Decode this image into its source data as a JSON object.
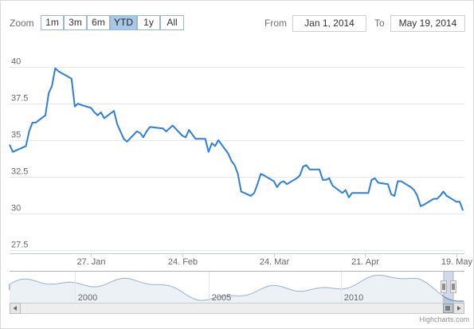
{
  "toolbar": {
    "zoom_label": "Zoom",
    "buttons": [
      "1m",
      "3m",
      "6m",
      "YTD",
      "1y",
      "All"
    ],
    "active_button": "YTD",
    "from_label": "From",
    "from_value": "Jan 1, 2014",
    "to_label": "To",
    "to_value": "May 19, 2014"
  },
  "chart_data": {
    "type": "line",
    "title": "",
    "xlabel": "",
    "ylabel": "",
    "x_start": "2014-01-02",
    "x_end": "2014-05-19",
    "ylim": [
      27.5,
      40
    ],
    "y_ticks": [
      "27.5",
      "30",
      "32.5",
      "35",
      "37.5",
      "40"
    ],
    "x_ticks": [
      "27. Jan",
      "24. Feb",
      "24. Mar",
      "21. Apr",
      "19. May"
    ],
    "grid": true,
    "series": [
      {
        "color": "#2f7ed8",
        "points": [
          [
            "2014-01-02",
            34.7
          ],
          [
            "2014-01-03",
            34.2
          ],
          [
            "2014-01-06",
            34.5
          ],
          [
            "2014-01-07",
            34.6
          ],
          [
            "2014-01-08",
            35.6
          ],
          [
            "2014-01-09",
            36.2
          ],
          [
            "2014-01-10",
            36.2
          ],
          [
            "2014-01-13",
            36.7
          ],
          [
            "2014-01-14",
            38.2
          ],
          [
            "2014-01-15",
            38.7
          ],
          [
            "2014-01-16",
            39.9
          ],
          [
            "2014-01-17",
            39.7
          ],
          [
            "2014-01-21",
            39.2
          ],
          [
            "2014-01-22",
            37.3
          ],
          [
            "2014-01-23",
            37.5
          ],
          [
            "2014-01-24",
            37.4
          ],
          [
            "2014-01-27",
            37.2
          ],
          [
            "2014-01-28",
            36.9
          ],
          [
            "2014-01-29",
            36.7
          ],
          [
            "2014-01-30",
            36.9
          ],
          [
            "2014-01-31",
            36.5
          ],
          [
            "2014-02-03",
            37.0
          ],
          [
            "2014-02-04",
            36.1
          ],
          [
            "2014-02-05",
            35.6
          ],
          [
            "2014-02-06",
            35.1
          ],
          [
            "2014-02-07",
            34.9
          ],
          [
            "2014-02-10",
            35.6
          ],
          [
            "2014-02-11",
            35.5
          ],
          [
            "2014-02-12",
            35.2
          ],
          [
            "2014-02-13",
            35.6
          ],
          [
            "2014-02-14",
            35.9
          ],
          [
            "2014-02-18",
            35.8
          ],
          [
            "2014-02-19",
            35.6
          ],
          [
            "2014-02-20",
            35.8
          ],
          [
            "2014-02-21",
            36.0
          ],
          [
            "2014-02-24",
            35.3
          ],
          [
            "2014-02-25",
            35.2
          ],
          [
            "2014-02-26",
            35.7
          ],
          [
            "2014-02-27",
            35.4
          ],
          [
            "2014-02-28",
            35.1
          ],
          [
            "2014-03-03",
            35.1
          ],
          [
            "2014-03-04",
            34.2
          ],
          [
            "2014-03-05",
            34.8
          ],
          [
            "2014-03-06",
            34.6
          ],
          [
            "2014-03-07",
            35.0
          ],
          [
            "2014-03-10",
            34.1
          ],
          [
            "2014-03-11",
            33.6
          ],
          [
            "2014-03-12",
            33.3
          ],
          [
            "2014-03-13",
            32.7
          ],
          [
            "2014-03-14",
            31.5
          ],
          [
            "2014-03-17",
            31.2
          ],
          [
            "2014-03-18",
            31.4
          ],
          [
            "2014-03-19",
            32.0
          ],
          [
            "2014-03-20",
            32.7
          ],
          [
            "2014-03-21",
            32.6
          ],
          [
            "2014-03-24",
            32.2
          ],
          [
            "2014-03-25",
            31.8
          ],
          [
            "2014-03-26",
            32.1
          ],
          [
            "2014-03-27",
            32.2
          ],
          [
            "2014-03-28",
            32.0
          ],
          [
            "2014-03-31",
            32.4
          ],
          [
            "2014-04-01",
            32.6
          ],
          [
            "2014-04-02",
            33.2
          ],
          [
            "2014-04-03",
            33.3
          ],
          [
            "2014-04-04",
            33.0
          ],
          [
            "2014-04-07",
            33.0
          ],
          [
            "2014-04-08",
            32.3
          ],
          [
            "2014-04-09",
            32.3
          ],
          [
            "2014-04-10",
            32.4
          ],
          [
            "2014-04-11",
            31.9
          ],
          [
            "2014-04-14",
            31.4
          ],
          [
            "2014-04-15",
            31.6
          ],
          [
            "2014-04-16",
            31.1
          ],
          [
            "2014-04-17",
            31.4
          ],
          [
            "2014-04-21",
            31.4
          ],
          [
            "2014-04-22",
            31.4
          ],
          [
            "2014-04-23",
            32.3
          ],
          [
            "2014-04-24",
            32.4
          ],
          [
            "2014-04-25",
            32.1
          ],
          [
            "2014-04-28",
            32.0
          ],
          [
            "2014-04-29",
            31.3
          ],
          [
            "2014-04-30",
            31.2
          ],
          [
            "2014-05-01",
            32.2
          ],
          [
            "2014-05-02",
            32.2
          ],
          [
            "2014-05-05",
            31.8
          ],
          [
            "2014-05-06",
            31.6
          ],
          [
            "2014-05-07",
            31.2
          ],
          [
            "2014-05-08",
            30.5
          ],
          [
            "2014-05-09",
            30.6
          ],
          [
            "2014-05-12",
            31.0
          ],
          [
            "2014-05-13",
            31.0
          ],
          [
            "2014-05-14",
            31.2
          ],
          [
            "2014-05-15",
            31.5
          ],
          [
            "2014-05-16",
            31.2
          ],
          [
            "2014-05-19",
            30.8
          ],
          [
            "2014-05-20",
            30.8
          ],
          [
            "2014-05-21",
            30.2
          ]
        ]
      }
    ]
  },
  "navigator": {
    "year_labels": [
      "2000",
      "2005",
      "2010"
    ],
    "series_color": "#4572a7",
    "fill_color": "#c0d0e0"
  },
  "credit": "Highcharts.com"
}
